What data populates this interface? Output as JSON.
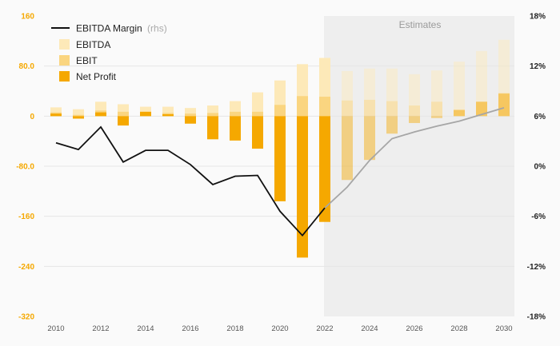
{
  "chart_data": {
    "type": "bar",
    "title": "",
    "xlabel": "",
    "ylabel": "",
    "x": [
      2010,
      2011,
      2012,
      2013,
      2014,
      2015,
      2016,
      2017,
      2018,
      2019,
      2020,
      2021,
      2022,
      2023,
      2024,
      2025,
      2026,
      2027,
      2028,
      2029,
      2030
    ],
    "x_ticks": [
      "2010",
      "2012",
      "2014",
      "2016",
      "2018",
      "2020",
      "2022",
      "2024",
      "2026",
      "2028",
      "2030"
    ],
    "ylim_left": [
      -320,
      160
    ],
    "y_ticks_left": [
      "160",
      "80.0",
      "0",
      "-80.0",
      "-160",
      "-240",
      "-320"
    ],
    "ylim_right": [
      -18,
      18
    ],
    "y_ticks_right": [
      "18%",
      "12%",
      "6%",
      "0%",
      "-6%",
      "-12%",
      "-18%"
    ],
    "estimates_from": 2023,
    "estimates_label": "Estimates",
    "grid": true,
    "legend_position": "top-left",
    "legend": [
      {
        "key": "margin",
        "label": "EBITDA Margin",
        "suffix": "(rhs)"
      },
      {
        "key": "ebitda",
        "label": "EBITDA"
      },
      {
        "key": "ebit",
        "label": "EBIT"
      },
      {
        "key": "net",
        "label": "Net Profit"
      }
    ],
    "colors": {
      "ebitda": "#fde9b8",
      "ebit": "#fad580",
      "net": "#f5a800",
      "margin": "#111111",
      "margin_est": "#a6a6a6",
      "grid": "#e6e6e6",
      "estimate_bg": "#eeeeee"
    },
    "series": [
      {
        "name": "EBITDA",
        "type": "bar",
        "axis": "left",
        "values": [
          14,
          11,
          23,
          19,
          15,
          15,
          13,
          17,
          24,
          38,
          57,
          83,
          93,
          72,
          76,
          76,
          67,
          73,
          87,
          104,
          122
        ]
      },
      {
        "name": "EBIT",
        "type": "bar",
        "axis": "left",
        "values": [
          6,
          2,
          9,
          7,
          6,
          5,
          4,
          5,
          7,
          7,
          18,
          32,
          31,
          25,
          26,
          24,
          17,
          23,
          10,
          23,
          37
        ]
      },
      {
        "name": "Net Profit",
        "type": "bar",
        "axis": "left",
        "values": [
          4,
          -4,
          6,
          -15,
          7,
          3,
          -12,
          -37,
          -39,
          -52,
          -136,
          -226,
          -169,
          -102,
          -70,
          -28,
          -11,
          -3,
          10,
          23,
          36
        ]
      },
      {
        "name": "EBITDA Margin",
        "type": "line",
        "axis": "right",
        "values": [
          2.8,
          2.0,
          4.7,
          0.5,
          1.9,
          1.9,
          0.2,
          -2.2,
          -1.2,
          -1.1,
          -5.4,
          -8.3,
          -5.0,
          -2.5,
          0.7,
          3.3,
          4.1,
          4.8,
          5.4,
          6.2,
          7.0
        ]
      }
    ]
  }
}
